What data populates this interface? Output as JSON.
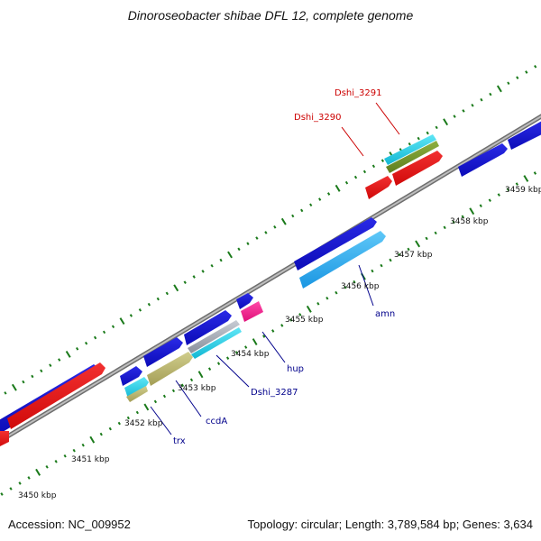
{
  "header": {
    "title": "Dinoroseobacter shibae DFL 12, complete genome"
  },
  "footer": {
    "accession": "Accession: NC_009952",
    "summary": "Topology: circular; Length: 3,789,584 bp; Genes: 3,634"
  },
  "colors": {
    "backbone": "#808080",
    "tick": "#1a7a1a",
    "forward_gene": "#1010cc",
    "reverse_gene": "#e01010",
    "label_forward": "#00008b",
    "label_reverse": "#cc0000"
  },
  "map": {
    "scale": [
      {
        "label": "3450 kbp"
      },
      {
        "label": "3451 kbp"
      },
      {
        "label": "3452 kbp"
      },
      {
        "label": "3453 kbp"
      },
      {
        "label": "3454 kbp"
      },
      {
        "label": "3455 kbp"
      },
      {
        "label": "3456 kbp"
      },
      {
        "label": "3457 kbp"
      },
      {
        "label": "3458 kbp"
      },
      {
        "label": "3459 kbp"
      }
    ],
    "gene_labels": [
      {
        "id": "trx",
        "text": "trx",
        "strand": "forward"
      },
      {
        "id": "ccda",
        "text": "ccdA",
        "strand": "forward"
      },
      {
        "id": "dshi3287",
        "text": "Dshi_3287",
        "strand": "forward"
      },
      {
        "id": "hup",
        "text": "hup",
        "strand": "forward"
      },
      {
        "id": "amn",
        "text": "amn",
        "strand": "forward"
      },
      {
        "id": "dshi3290",
        "text": "Dshi_3290",
        "strand": "reverse"
      },
      {
        "id": "dshi3291",
        "text": "Dshi_3291",
        "strand": "reverse"
      }
    ]
  }
}
